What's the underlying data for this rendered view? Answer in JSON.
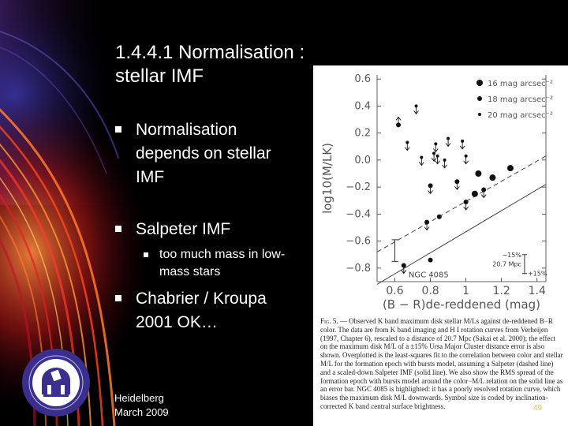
{
  "slide": {
    "title_line1": "1.4.4.1 Normalisation :",
    "title_line2": "stellar IMF",
    "bullets": [
      {
        "text": "Normalisation depends on stellar IMF"
      },
      {
        "text": "Salpeter IMF"
      },
      {
        "text": "too much mass in low-mass stars"
      },
      {
        "text": "Chabrier / Kroupa 2001 OK…"
      }
    ],
    "footer_line1": "Heidelberg",
    "footer_line2": "March 2009",
    "slide_number": "49"
  },
  "colors": {
    "background": "#000000",
    "text": "#ffffff",
    "figure_bg": "#ffffff",
    "slide_number": "#d9cc55",
    "logo_blue": "#3a2f8f"
  },
  "figure": {
    "caption_label": "Fig. 5.",
    "caption_text": "— Observed K band maximum disk stellar M/Ls against de-reddened B−R color. The data are from K band imaging and H I rotation curves from Verheijen (1997, Chapter 6), rescaled to a distance of 20.7 Mpc (Sakai et al. 2000); the effect on the maximum disk M/L of a ±15% Ursa Major Cluster distance error is also shown. Overplotted is the least-squares fit to the correlation between color and stellar M/L for the formation epoch with bursts model, assuming a Salpeter (dashed line) and a scaled-down Salpeter IMF (solid line). We also show the RMS spread of the formation epoch with bursts model around the color−M/L relation on the solid line as an error bar. NGC 4085 is highlighted: it has a poorly resolved rotation curve, which biases the maximum disk M/L downwards. Symbol size is coded by inclination-corrected K band central surface brightness.",
    "distance_label_top": "−15%",
    "distance_label_mid": "20.7 Mpc",
    "distance_label_bot": "+15%",
    "highlight_label": "NGC 4085",
    "legend": [
      {
        "label": "16 mag arcsec⁻²",
        "symbol": "large-dot"
      },
      {
        "label": "18 mag arcsec⁻²",
        "symbol": "medium-dot"
      },
      {
        "label": "20 mag arcsec⁻²",
        "symbol": "small-dot"
      }
    ]
  },
  "chart_data": {
    "type": "scatter",
    "title": "",
    "xlabel": "(B − R)de-reddened (mag)",
    "ylabel": "log10(M/LK)",
    "xlim": [
      0.5,
      1.45
    ],
    "ylim": [
      -0.9,
      0.63
    ],
    "xticks": [
      "0.6",
      "0.8",
      "1",
      "1.2",
      "1.4"
    ],
    "yticks": [
      "0.6",
      "0.4",
      "0.2",
      "0.0",
      "−0.2",
      "−0.4",
      "−0.6",
      "−0.8"
    ],
    "grid": false,
    "legend_position": "top-right",
    "lines": [
      {
        "style": "dashed",
        "x": [
          0.5,
          1.45
        ],
        "y": [
          -0.68,
          0.03
        ]
      },
      {
        "style": "solid",
        "x": [
          0.5,
          1.45
        ],
        "y": [
          -0.92,
          -0.18
        ]
      }
    ],
    "points": [
      {
        "x": 0.62,
        "y": 0.26,
        "size": "medium",
        "limit": "up"
      },
      {
        "x": 0.65,
        "y": -0.78,
        "size": "medium",
        "limit": "down"
      },
      {
        "x": 0.67,
        "y": 0.13,
        "size": "small",
        "limit": "down"
      },
      {
        "x": 0.72,
        "y": 0.4,
        "size": "small",
        "limit": "down"
      },
      {
        "x": 0.75,
        "y": 0.02,
        "size": "small",
        "limit": "down"
      },
      {
        "x": 0.78,
        "y": -0.46,
        "size": "medium",
        "limit": "down"
      },
      {
        "x": 0.8,
        "y": -0.19,
        "size": "medium",
        "limit": "down"
      },
      {
        "x": 0.8,
        "y": -0.74,
        "size": "medium",
        "limit": "none"
      },
      {
        "x": 0.82,
        "y": 0.05,
        "size": "small",
        "limit": "down"
      },
      {
        "x": 0.83,
        "y": 0.12,
        "size": "small",
        "limit": "down"
      },
      {
        "x": 0.84,
        "y": 0.03,
        "size": "small",
        "limit": "down"
      },
      {
        "x": 0.85,
        "y": -0.42,
        "size": "medium",
        "limit": "none"
      },
      {
        "x": 0.88,
        "y": 0.0,
        "size": "small",
        "limit": "down"
      },
      {
        "x": 0.9,
        "y": 0.16,
        "size": "small",
        "limit": "down"
      },
      {
        "x": 0.95,
        "y": -0.16,
        "size": "medium",
        "limit": "down"
      },
      {
        "x": 0.98,
        "y": 0.14,
        "size": "small",
        "limit": "down"
      },
      {
        "x": 1.0,
        "y": -0.31,
        "size": "medium",
        "limit": "down"
      },
      {
        "x": 1.0,
        "y": 0.03,
        "size": "small",
        "limit": "down"
      },
      {
        "x": 1.05,
        "y": -0.25,
        "size": "large",
        "limit": "none"
      },
      {
        "x": 1.07,
        "y": -0.1,
        "size": "large",
        "limit": "none"
      },
      {
        "x": 1.1,
        "y": -0.22,
        "size": "medium",
        "limit": "down"
      },
      {
        "x": 1.15,
        "y": -0.13,
        "size": "large",
        "limit": "none"
      },
      {
        "x": 1.25,
        "y": -0.06,
        "size": "large",
        "limit": "none"
      }
    ],
    "error_bar": {
      "x": 0.6,
      "y": -0.67,
      "err": 0.08
    },
    "distance_bar": {
      "x": 1.33,
      "y": -0.77,
      "err": 0.07
    }
  }
}
